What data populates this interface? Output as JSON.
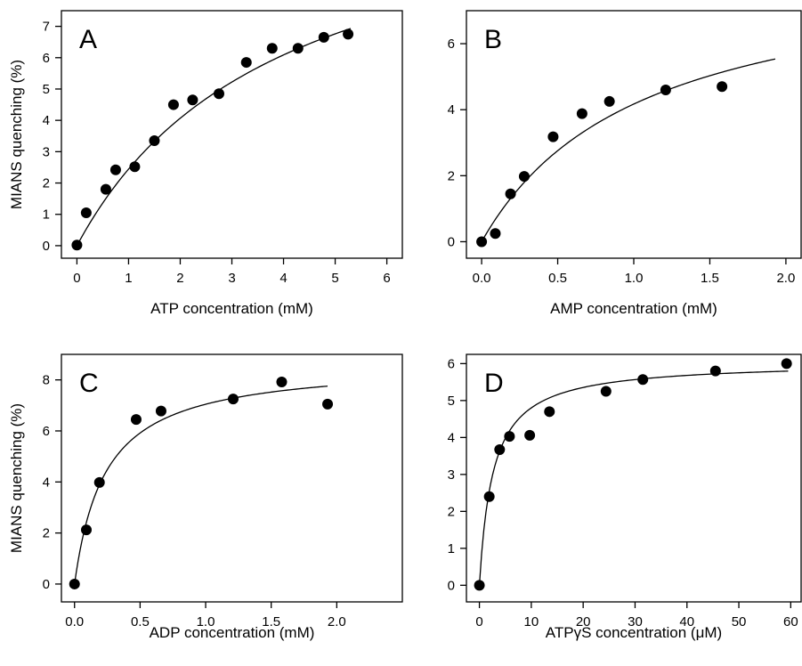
{
  "figure": {
    "ylabel": "MIANS quenching (%)"
  },
  "chart_data": [
    {
      "panel": "A",
      "type": "scatter",
      "xlabel": "ATP concentration (mM)",
      "ylabel": "MIANS quenching (%)",
      "xlim": [
        -0.3,
        6.3
      ],
      "ylim": [
        -0.4,
        7.5
      ],
      "xticks": [
        0,
        1,
        2,
        3,
        4,
        5,
        6
      ],
      "yticks": [
        0,
        1,
        2,
        3,
        4,
        5,
        6,
        7
      ],
      "xtick_labels": [
        "0",
        "1",
        "2",
        "3",
        "4",
        "5",
        "6"
      ],
      "ytick_labels": [
        "0",
        "1",
        "2",
        "3",
        "4",
        "5",
        "6",
        "7"
      ],
      "points": {
        "x": [
          0.0,
          0.18,
          0.56,
          0.75,
          1.12,
          1.5,
          1.87,
          2.24,
          2.75,
          3.28,
          3.78,
          4.28,
          4.78,
          5.25
        ],
        "y": [
          0.02,
          1.05,
          1.8,
          2.42,
          2.52,
          3.35,
          4.5,
          4.65,
          4.85,
          5.85,
          6.3,
          6.3,
          6.65,
          6.75
        ]
      },
      "fit": {
        "vmax": 12.1,
        "k": 3.95,
        "xmax": 5.3
      }
    },
    {
      "panel": "B",
      "type": "scatter",
      "xlabel": "AMP concentration (mM)",
      "ylabel": "",
      "xlim": [
        -0.1,
        2.1
      ],
      "ylim": [
        -0.5,
        7.0
      ],
      "xticks": [
        0,
        0.5,
        1.0,
        1.5,
        2.0
      ],
      "yticks": [
        0,
        2,
        4,
        6
      ],
      "xtick_labels": [
        "0.0",
        "0.5",
        "1.0",
        "1.5",
        "2.0"
      ],
      "ytick_labels": [
        "0",
        "2",
        "4",
        "6"
      ],
      "points": {
        "x": [
          0.0,
          0.09,
          0.19,
          0.28,
          0.47,
          0.66,
          0.84,
          1.21,
          1.58
        ],
        "y": [
          0.0,
          0.25,
          1.45,
          1.98,
          3.18,
          3.88,
          4.25,
          4.6,
          4.7
        ]
      },
      "fit": {
        "vmax": 8.55,
        "k": 1.05,
        "xmax": 1.93
      }
    },
    {
      "panel": "C",
      "type": "scatter",
      "xlabel": "ADP concentration (mM)",
      "ylabel": "MIANS quenching (%)",
      "xlim": [
        -0.1,
        2.5
      ],
      "ylim": [
        -0.7,
        9.0
      ],
      "xticks": [
        0,
        0.5,
        1.0,
        1.5,
        2.0
      ],
      "yticks": [
        0,
        2,
        4,
        6,
        8
      ],
      "xtick_labels": [
        "0.0",
        "0.5",
        "1.0",
        "1.5",
        "2.0"
      ],
      "ytick_labels": [
        "0",
        "2",
        "4",
        "6",
        "8"
      ],
      "points": {
        "x": [
          0.0,
          0.09,
          0.19,
          0.47,
          0.66,
          1.21,
          1.58,
          1.93
        ],
        "y": [
          0.0,
          2.12,
          3.98,
          6.45,
          6.78,
          7.25,
          7.92,
          7.05
        ]
      },
      "fit": {
        "vmax": 8.7,
        "k": 0.235,
        "xmax": 1.93
      }
    },
    {
      "panel": "D",
      "type": "scatter",
      "xlabel": "ATPγS concentration (μM)",
      "ylabel": "",
      "xlim": [
        -2.5,
        62
      ],
      "ylim": [
        -0.45,
        6.25
      ],
      "xticks": [
        0,
        10,
        20,
        30,
        40,
        50,
        60
      ],
      "yticks": [
        0,
        1,
        2,
        3,
        4,
        5,
        6
      ],
      "xtick_labels": [
        "0",
        "10",
        "20",
        "30",
        "40",
        "50",
        "60"
      ],
      "ytick_labels": [
        "0",
        "1",
        "2",
        "3",
        "4",
        "5",
        "6"
      ],
      "points": {
        "x": [
          0.0,
          1.9,
          3.9,
          5.8,
          9.7,
          13.5,
          24.4,
          31.5,
          45.5,
          59.2
        ],
        "y": [
          0.0,
          2.4,
          3.67,
          4.03,
          4.06,
          4.7,
          5.25,
          5.57,
          5.8,
          6.0
        ]
      },
      "fit": {
        "vmax": 6.05,
        "k": 2.6,
        "xmax": 59.5
      }
    }
  ]
}
